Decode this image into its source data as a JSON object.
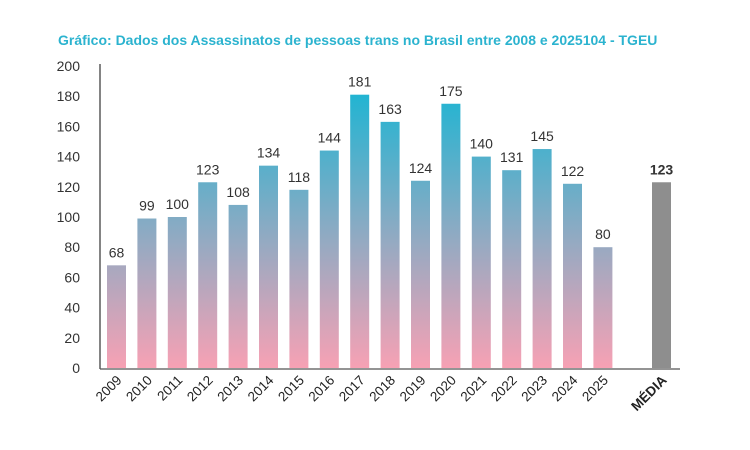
{
  "chart_data": {
    "type": "bar",
    "title": "Gráfico: Dados dos Assassinatos de pessoas trans no Brasil entre 2008 e 2025104 - TGEU",
    "categories": [
      "2009",
      "2010",
      "2011",
      "2012",
      "2013",
      "2014",
      "2015",
      "2016",
      "2017",
      "2018",
      "2019",
      "2020",
      "2021",
      "2022",
      "2023",
      "2024",
      "2025"
    ],
    "values": [
      68,
      99,
      100,
      123,
      108,
      134,
      118,
      144,
      181,
      163,
      124,
      175,
      140,
      131,
      145,
      122,
      80
    ],
    "average": {
      "label": "MÉDIA",
      "value": 123
    },
    "yticks": [
      0,
      20,
      40,
      60,
      80,
      100,
      120,
      140,
      160,
      180,
      200
    ],
    "ylim": [
      0,
      200
    ],
    "grid": false,
    "colors": {
      "gradient_top": "#22b4d2",
      "gradient_bottom": "#f7a1b4",
      "average_bar": "#8e8e8e",
      "title": "#2bb3cf"
    }
  }
}
